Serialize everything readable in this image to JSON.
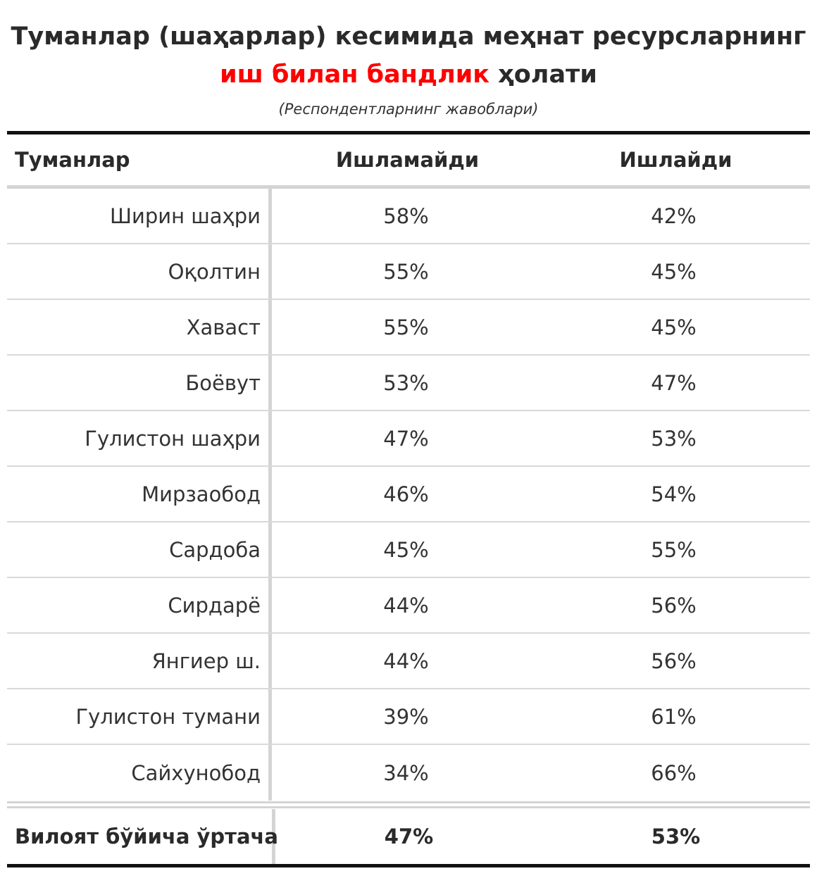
{
  "title": {
    "line1": "Туманлар (шаҳарлар) кесимида меҳнат ресурсларнинг",
    "line2_highlight": "иш билан бандлик",
    "line2_rest": " ҳолати",
    "subtitle": "(Респондентларнинг жавоблари)",
    "highlight_color": "#ff0000"
  },
  "table": {
    "headers": [
      "Туманлар",
      "Ишламайди",
      "Ишлайди"
    ],
    "rows": [
      {
        "district": "Ширин шаҳри",
        "not_working": "58%",
        "working": "42%"
      },
      {
        "district": "Оқолтин",
        "not_working": "55%",
        "working": "45%"
      },
      {
        "district": "Хаваст",
        "not_working": "55%",
        "working": "45%"
      },
      {
        "district": "Боёвут",
        "not_working": "53%",
        "working": "47%"
      },
      {
        "district": "Гулистон шаҳри",
        "not_working": "47%",
        "working": "53%"
      },
      {
        "district": "Мирзаобод",
        "not_working": "46%",
        "working": "54%"
      },
      {
        "district": "Сардоба",
        "not_working": "45%",
        "working": "55%"
      },
      {
        "district": "Сирдарё",
        "not_working": "44%",
        "working": "56%"
      },
      {
        "district": "Янгиер ш.",
        "not_working": "44%",
        "working": "56%"
      },
      {
        "district": "Гулистон тумани",
        "not_working": "39%",
        "working": "61%"
      },
      {
        "district": "Сайхунобод",
        "not_working": "34%",
        "working": "66%"
      }
    ],
    "footer": {
      "district": "Вилоят бўйича ўртача",
      "not_working": "47%",
      "working": "53%"
    }
  }
}
